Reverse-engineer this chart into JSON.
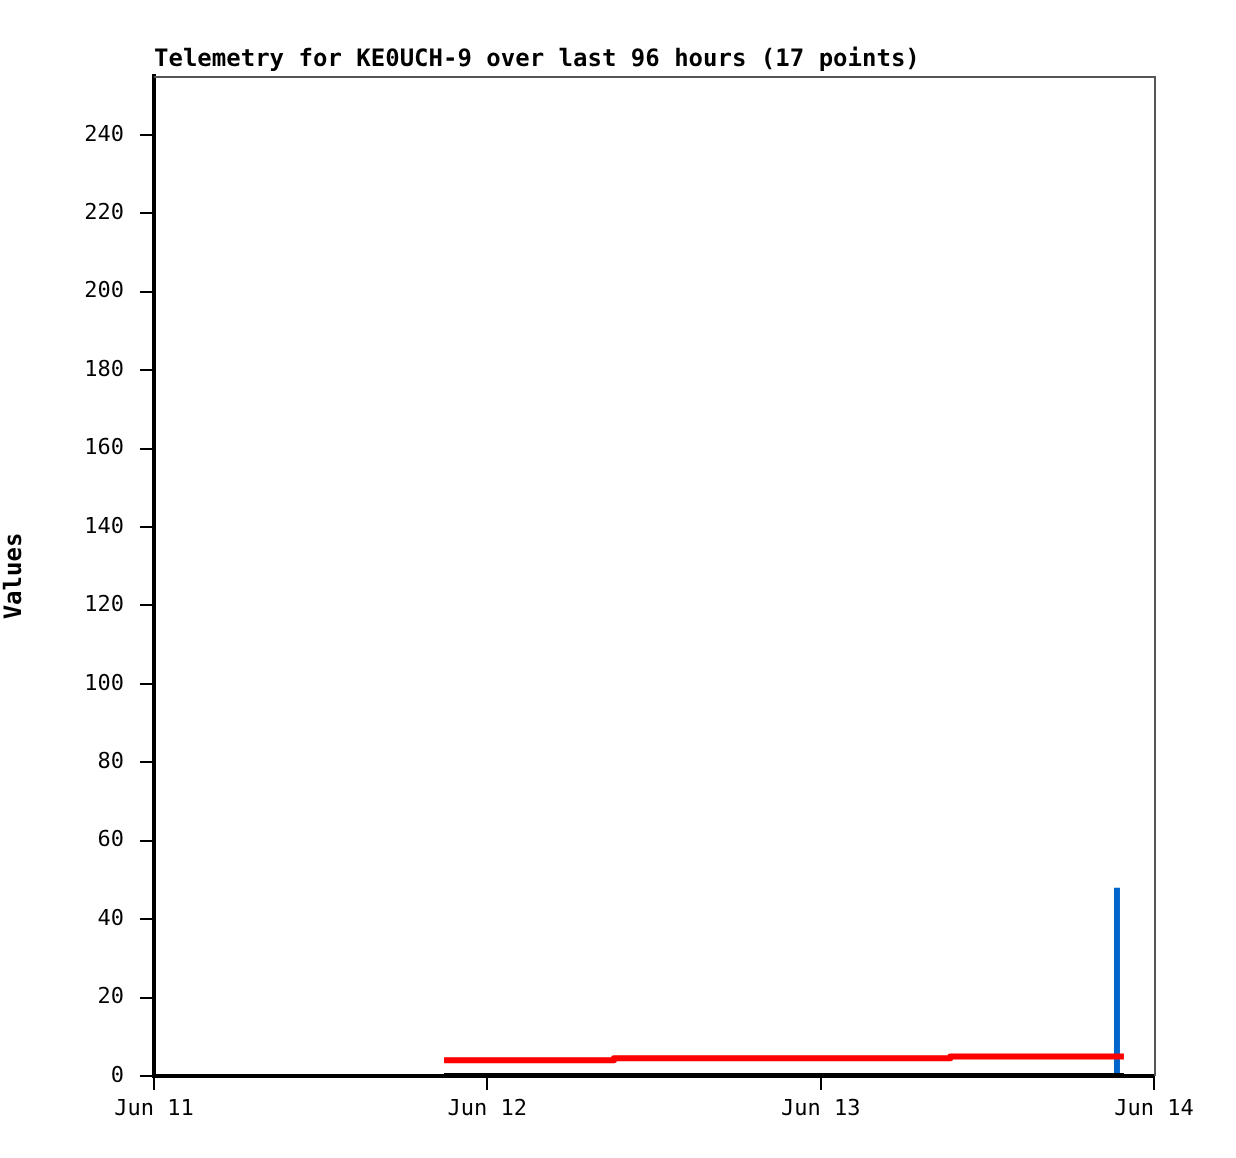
{
  "chart_data": {
    "type": "step",
    "title": "Telemetry for KE0UCH-9 over last 96 hours (17 points)",
    "ylabel": "Values",
    "series": [
      {
        "color": "#000000",
        "x": [
          "--06-11T20:53",
          "--06-13T21:50"
        ],
        "values": [
          0,
          0
        ]
      },
      {
        "color": "#ff0000",
        "x": [
          "--06-11T20:53",
          "--06-12T09:07",
          "--06-13T09:20",
          "--06-13T21:50"
        ],
        "values": [
          4,
          4.5,
          5,
          5
        ]
      },
      {
        "color": "#0066cc",
        "type": "line",
        "x": [
          "--06-13T21:20",
          "--06-13T21:20"
        ],
        "values": [
          0,
          48
        ]
      }
    ],
    "xlim": [
      "--06-11",
      "--06-14"
    ],
    "xticks": [
      {
        "value": "--06-11",
        "label": "Jun 11"
      },
      {
        "value": "--06-12",
        "label": "Jun 12"
      },
      {
        "value": "--06-13",
        "label": "Jun 13"
      },
      {
        "value": "--06-14",
        "label": "Jun 14"
      }
    ],
    "ylim": [
      0,
      255
    ],
    "yticks": [
      0,
      20,
      40,
      60,
      80,
      100,
      120,
      140,
      160,
      180,
      200,
      220,
      240
    ],
    "grid": false,
    "legend": false
  }
}
